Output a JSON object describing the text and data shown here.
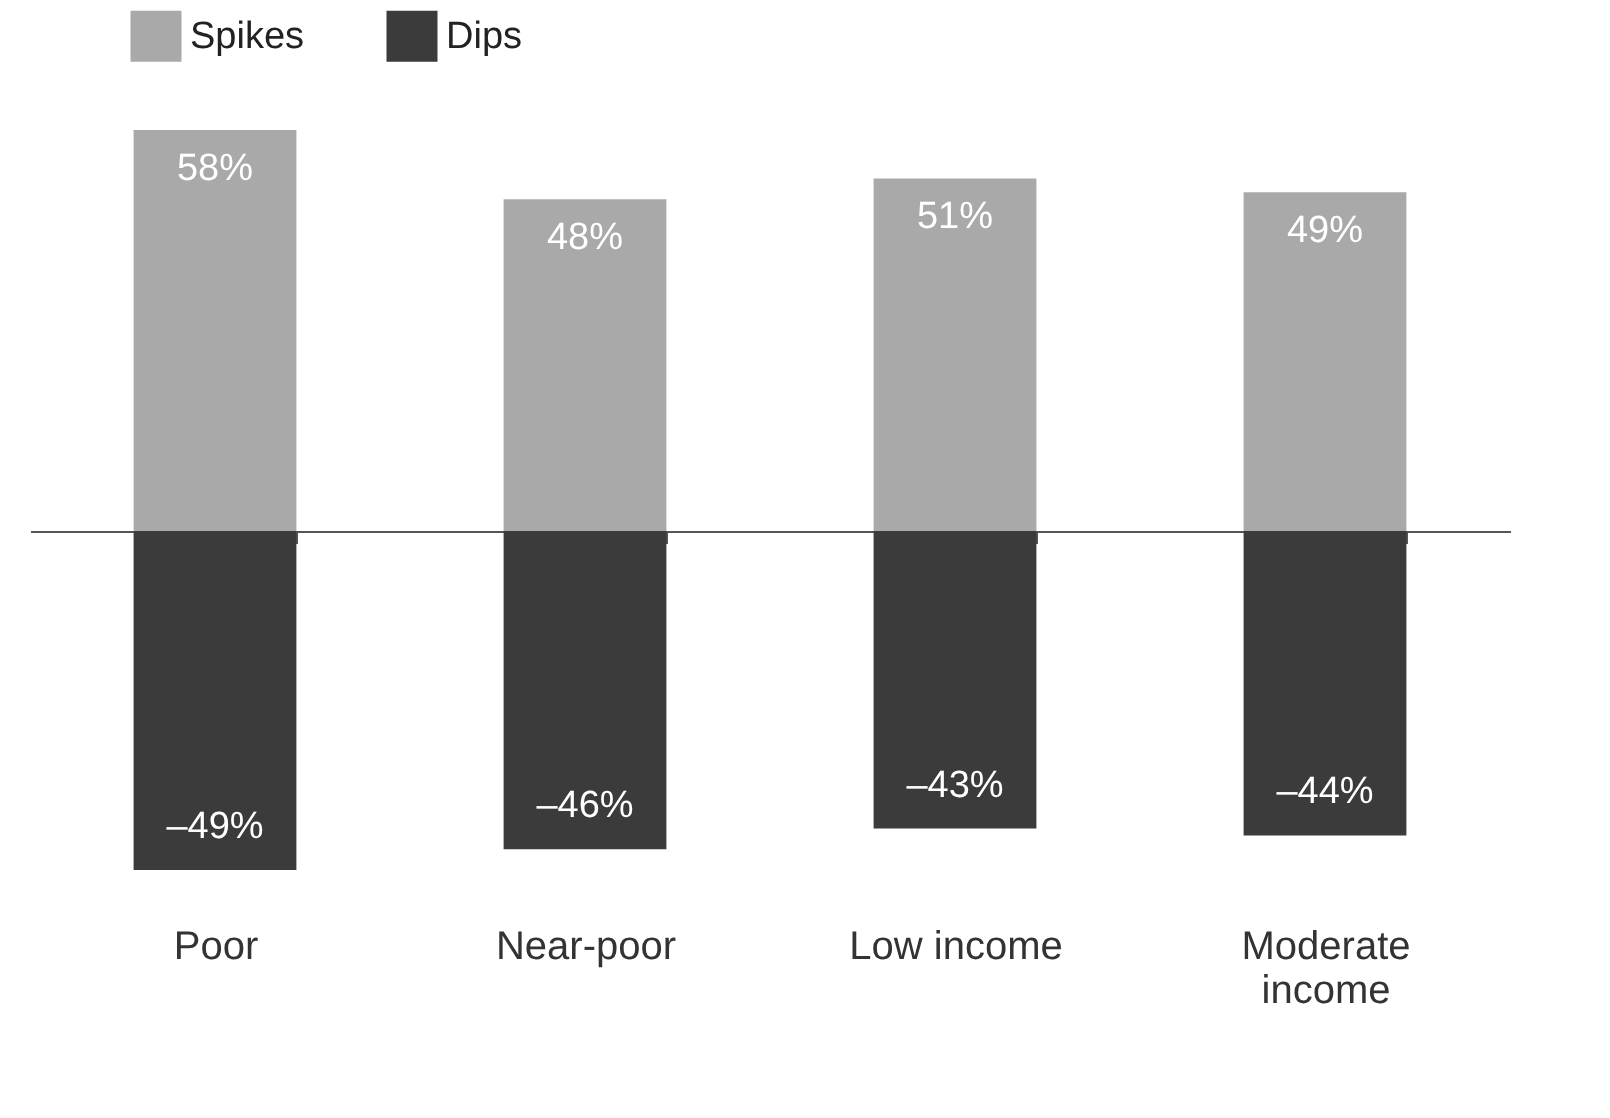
{
  "chart_data": {
    "type": "bar",
    "categories": [
      "Poor",
      "Near-poor",
      "Low income",
      "Moderate income"
    ],
    "series": [
      {
        "name": "Spikes",
        "color": "#a9a9a9",
        "values": [
          58,
          48,
          51,
          49
        ],
        "value_labels": [
          "58%",
          "48%",
          "51%",
          "49%"
        ]
      },
      {
        "name": "Dips",
        "color": "#3b3b3b",
        "values": [
          -49,
          -46,
          -43,
          -44
        ],
        "value_labels": [
          "–49%",
          "–46%",
          "–43%",
          "–44%"
        ]
      }
    ],
    "stacked": true,
    "legend": "top left"
  }
}
